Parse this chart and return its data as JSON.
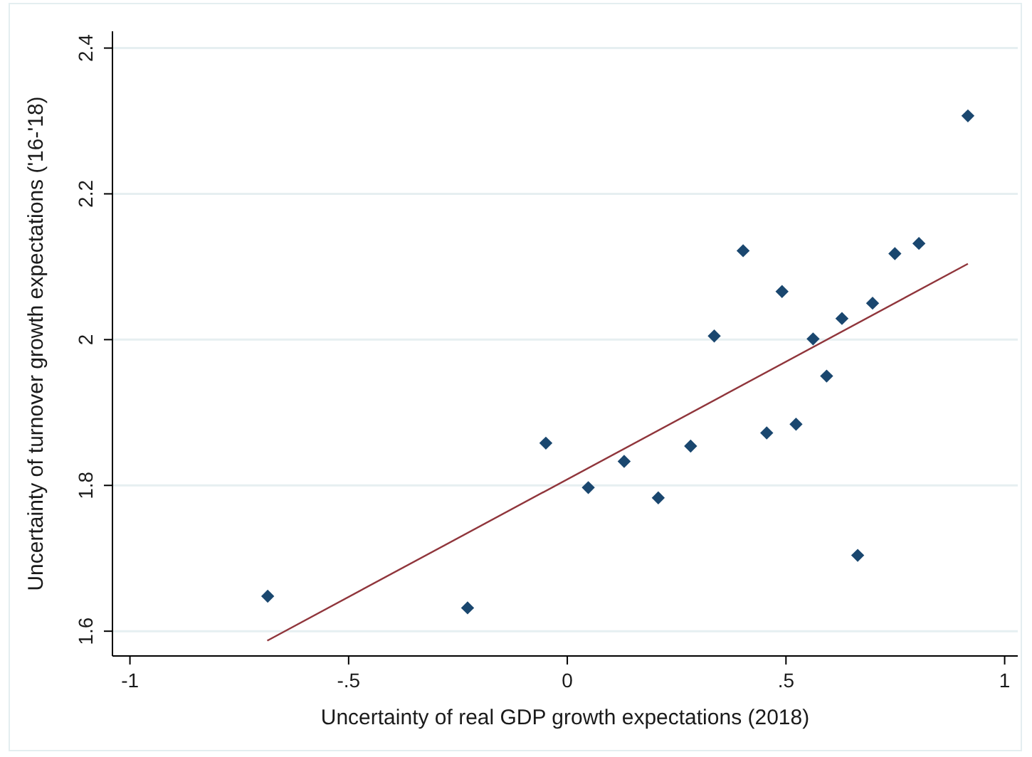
{
  "chart_data": {
    "type": "scatter",
    "xlabel": "Uncertainty of real GDP growth expectations (2018)",
    "ylabel": "Uncertainty of turnover growth expectations ('16-'18)",
    "xlim": [
      -1.04,
      1.03
    ],
    "ylim": [
      1.566,
      2.423
    ],
    "xticks": [
      -1,
      {
        "value": -0.5,
        "label": "-.5"
      },
      0,
      {
        "value": 0.5,
        "label": ".5"
      },
      1
    ],
    "yticks": [
      1.6,
      1.8,
      2,
      2.2,
      2.4
    ],
    "grid": "y",
    "marker": "diamond",
    "series": [
      {
        "color": "#1a476f",
        "x": [
          -0.685,
          -0.228,
          -0.049,
          0.048,
          0.13,
          0.208,
          0.282,
          0.336,
          0.402,
          0.456,
          0.491,
          0.523,
          0.562,
          0.593,
          0.628,
          0.664,
          0.698,
          0.749,
          0.804,
          0.916
        ],
        "values": [
          1.648,
          1.632,
          1.858,
          1.797,
          1.833,
          1.783,
          1.854,
          2.005,
          2.122,
          1.872,
          2.066,
          1.884,
          2.001,
          1.95,
          2.029,
          1.704,
          2.05,
          2.118,
          2.132,
          2.307
        ]
      },
      {
        "type": "line",
        "marker": "none",
        "color": "#90353b",
        "x": [
          -0.686,
          0.916
        ],
        "values": [
          1.587,
          2.104
        ]
      }
    ]
  }
}
